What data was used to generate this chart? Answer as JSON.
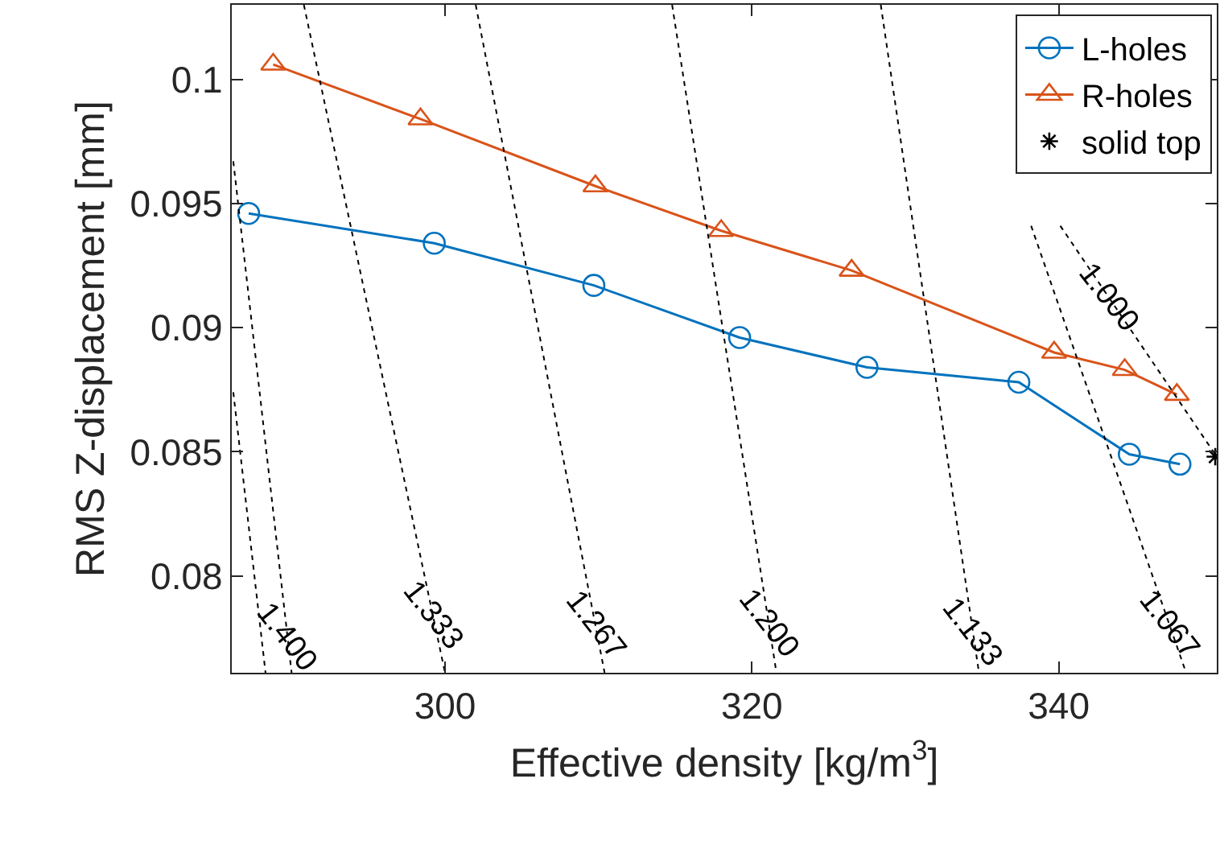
{
  "chart_data": {
    "type": "line",
    "xlabel": "Effective density [kg/m$^{3}$]",
    "ylabel": "RMS Z-displacement [mm]",
    "xlim": [
      286.1,
      350.3
    ],
    "xticks": [
      300,
      320,
      340
    ],
    "ylim": [
      0.0761,
      0.103
    ],
    "yticks": [
      0.08,
      0.085,
      0.09,
      0.095,
      0.1
    ],
    "legend": "top right",
    "series": [
      {
        "name": "L-holes",
        "color": "#0072bd",
        "marker": "circle",
        "line_style": "solid",
        "x": [
          287.2,
          299.3,
          309.7,
          319.2,
          327.5,
          337.4,
          344.6,
          347.9
        ],
        "values": [
          0.0946,
          0.0934,
          0.0917,
          0.0896,
          0.0884,
          0.0878,
          0.0849,
          0.0845
        ]
      },
      {
        "name": "R-holes",
        "color": "#d95319",
        "marker": "triangle",
        "line_style": "solid",
        "x": [
          288.8,
          298.4,
          309.8,
          318.0,
          326.5,
          339.7,
          344.3,
          347.7
        ],
        "values": [
          0.1006,
          0.0984,
          0.0957,
          0.0939,
          0.0923,
          0.089,
          0.0883,
          0.0873
        ]
      },
      {
        "name": "solid top",
        "color": "#000000",
        "marker": "cross",
        "line_style": "none",
        "x": [
          350.2
        ],
        "values": [
          0.0848
        ]
      },
      {
        "color": "#000000",
        "marker": "none",
        "line_style": "dotted",
        "x": [
          286.2,
          288.3
        ],
        "values": [
          0.0874,
          0.0761
        ]
      },
      {
        "color": "#000000",
        "marker": "none",
        "line_style": "dotted",
        "x": [
          286.2,
          290.0
        ],
        "values": [
          0.0967,
          0.0761
        ]
      },
      {
        "color": "#000000",
        "marker": "none",
        "line_style": "dotted",
        "x": [
          290.8,
          300.0
        ],
        "values": [
          0.103,
          0.0761
        ]
      },
      {
        "color": "#000000",
        "marker": "none",
        "line_style": "dotted",
        "x": [
          302.0,
          310.4
        ],
        "values": [
          0.103,
          0.0761
        ]
      },
      {
        "color": "#000000",
        "marker": "none",
        "line_style": "dotted",
        "x": [
          314.8,
          321.6
        ],
        "values": [
          0.103,
          0.0761
        ]
      },
      {
        "color": "#000000",
        "marker": "none",
        "line_style": "dotted",
        "x": [
          328.4,
          334.8
        ],
        "values": [
          0.103,
          0.0761
        ]
      },
      {
        "color": "#000000",
        "marker": "none",
        "line_style": "dotted",
        "x": [
          338.2,
          348.3
        ],
        "values": [
          0.0941,
          0.0761
        ]
      },
      {
        "color": "#000000",
        "marker": "none",
        "line_style": "dotted",
        "x": [
          340.1,
          350.3
        ],
        "values": [
          0.0941,
          0.0848
        ]
      }
    ],
    "annotations": [
      {
        "text": "1.400",
        "x": 289.7,
        "y": 0.0775
      },
      {
        "text": "1.333",
        "x": 299.2,
        "y": 0.0784
      },
      {
        "text": "1.267",
        "x": 309.8,
        "y": 0.078
      },
      {
        "text": "1.200",
        "x": 321.1,
        "y": 0.0781
      },
      {
        "text": "1.133",
        "x": 334.4,
        "y": 0.0777
      },
      {
        "text": "1.067",
        "x": 347.2,
        "y": 0.078
      },
      {
        "text": "1.000",
        "x": 343.3,
        "y": 0.0912
      }
    ]
  }
}
